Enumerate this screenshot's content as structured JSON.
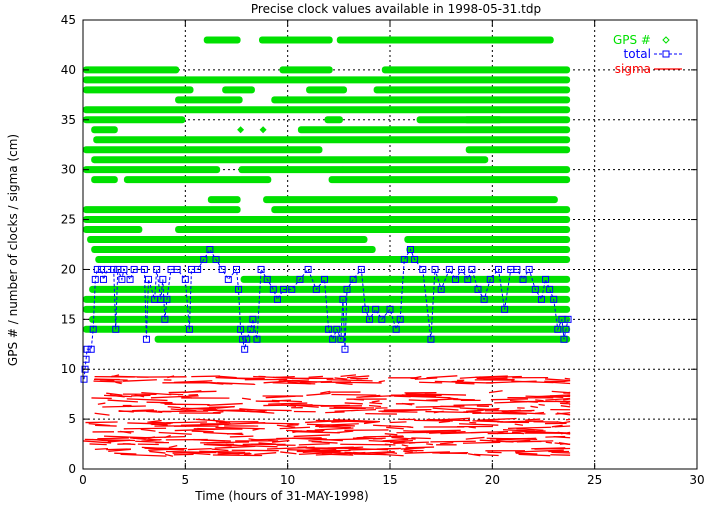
{
  "chart_data": {
    "type": "scatter",
    "title": "Precise clock values available in 1998-05-31.tdp",
    "xlabel": "Time (hours of 31-MAY-1998)",
    "ylabel": "GPS # / number of clocks / sigma (cm)",
    "xlim": [
      0,
      30
    ],
    "ylim": [
      0,
      45
    ],
    "x_ticks": [
      "0",
      "5",
      "10",
      "15",
      "20",
      "25",
      "30"
    ],
    "y_ticks": [
      "0",
      "5",
      "10",
      "15",
      "20",
      "25",
      "30",
      "35",
      "40",
      "45"
    ],
    "grid": true,
    "legend_placement": "top-right",
    "series": [
      {
        "name": "GPS #",
        "color": "#00e000",
        "style": "diamond-markers",
        "segments": [
          {
            "gps": 43,
            "spans": [
              [
                5.9,
                7.7
              ],
              [
                8.6,
                12.2
              ],
              [
                12.4,
                23.0
              ]
            ]
          },
          {
            "gps": 40,
            "spans": [
              [
                0,
                4.7
              ],
              [
                9.6,
                12.2
              ],
              [
                14.6,
                23.8
              ]
            ]
          },
          {
            "gps": 39,
            "spans": [
              [
                0,
                23.8
              ]
            ]
          },
          {
            "gps": 38,
            "spans": [
              [
                0,
                5.4
              ],
              [
                6.8,
                8.4
              ],
              [
                10.9,
                12.9
              ],
              [
                14.2,
                23.8
              ]
            ]
          },
          {
            "gps": 37,
            "spans": [
              [
                4.5,
                7.8
              ],
              [
                9.2,
                23.8
              ]
            ]
          },
          {
            "gps": 36,
            "spans": [
              [
                0,
                23.8
              ]
            ]
          },
          {
            "gps": 35,
            "spans": [
              [
                0,
                5.0
              ],
              [
                11.8,
                12.7
              ],
              [
                16.3,
                20.5
              ],
              [
                18.6,
                23.8
              ]
            ]
          },
          {
            "gps": 34,
            "spans": [
              [
                0.4,
                1.7
              ],
              [
                10.5,
                23.8
              ]
            ]
          },
          {
            "gps": 33,
            "spans": [
              [
                0.5,
                23.8
              ]
            ]
          },
          {
            "gps": 32,
            "spans": [
              [
                0,
                11.7
              ],
              [
                18.7,
                23.8
              ]
            ]
          },
          {
            "gps": 31,
            "spans": [
              [
                0.4,
                19.8
              ]
            ]
          },
          {
            "gps": 30,
            "spans": [
              [
                0,
                6.7
              ],
              [
                7.6,
                23.8
              ]
            ]
          },
          {
            "gps": 29,
            "spans": [
              [
                0.4,
                1.7
              ],
              [
                2.0,
                9.2
              ],
              [
                12.0,
                23.8
              ]
            ]
          },
          {
            "gps": 27,
            "spans": [
              [
                6.1,
                7.7
              ],
              [
                8.8,
                23.2
              ]
            ]
          },
          {
            "gps": 26,
            "spans": [
              [
                0,
                7.7
              ],
              [
                9.2,
                23.8
              ]
            ]
          },
          {
            "gps": 25,
            "spans": [
              [
                0,
                23.8
              ]
            ]
          },
          {
            "gps": 24,
            "spans": [
              [
                0,
                2.9
              ],
              [
                4.5,
                23.8
              ]
            ]
          },
          {
            "gps": 23,
            "spans": [
              [
                0.2,
                13.9
              ],
              [
                15.7,
                23.8
              ]
            ]
          },
          {
            "gps": 22,
            "spans": [
              [
                0.4,
                14.3
              ],
              [
                15.8,
                23.8
              ]
            ]
          },
          {
            "gps": 21,
            "spans": [
              [
                0.6,
                23.8
              ]
            ]
          },
          {
            "gps": 19,
            "spans": [
              [
                7.7,
                23.8
              ]
            ]
          },
          {
            "gps": 18,
            "spans": [
              [
                0.3,
                23.8
              ]
            ]
          },
          {
            "gps": 17,
            "spans": [
              [
                0,
                23.8
              ]
            ]
          },
          {
            "gps": 16,
            "spans": [
              [
                0,
                23.8
              ]
            ]
          },
          {
            "gps": 15,
            "spans": [
              [
                0.3,
                23.8
              ]
            ]
          },
          {
            "gps": 14,
            "spans": [
              [
                0,
                23.8
              ]
            ]
          },
          {
            "gps": 13,
            "spans": [
              [
                3.5,
                23.8
              ]
            ]
          }
        ],
        "isolated_points": [
          [
            7.7,
            34
          ],
          [
            8.8,
            34
          ],
          [
            12.7,
            30
          ]
        ]
      },
      {
        "name": "total",
        "color": "#0000ff",
        "style": "square-markers-dashed-line",
        "points": [
          [
            0.05,
            9
          ],
          [
            0.1,
            10
          ],
          [
            0.15,
            11
          ],
          [
            0.2,
            12
          ],
          [
            0.4,
            12
          ],
          [
            0.5,
            14
          ],
          [
            0.6,
            19
          ],
          [
            0.7,
            20
          ],
          [
            0.9,
            20
          ],
          [
            1.0,
            19
          ],
          [
            1.2,
            20
          ],
          [
            1.5,
            20
          ],
          [
            1.6,
            14
          ],
          [
            1.7,
            20
          ],
          [
            1.9,
            19
          ],
          [
            2.0,
            20
          ],
          [
            2.3,
            19
          ],
          [
            2.5,
            20
          ],
          [
            3.0,
            20
          ],
          [
            3.1,
            13
          ],
          [
            3.2,
            19
          ],
          [
            3.5,
            17
          ],
          [
            3.6,
            20
          ],
          [
            3.8,
            17
          ],
          [
            3.9,
            19
          ],
          [
            4.0,
            15
          ],
          [
            4.1,
            17
          ],
          [
            4.3,
            20
          ],
          [
            4.6,
            20
          ],
          [
            5.0,
            19
          ],
          [
            5.2,
            14
          ],
          [
            5.3,
            20
          ],
          [
            5.6,
            20
          ],
          [
            5.9,
            21
          ],
          [
            6.2,
            22
          ],
          [
            6.5,
            21
          ],
          [
            6.8,
            20
          ],
          [
            7.1,
            19
          ],
          [
            7.5,
            20
          ],
          [
            7.6,
            18
          ],
          [
            7.7,
            14
          ],
          [
            7.8,
            13
          ],
          [
            7.9,
            12
          ],
          [
            8.0,
            13
          ],
          [
            8.2,
            14
          ],
          [
            8.3,
            15
          ],
          [
            8.5,
            13
          ],
          [
            8.7,
            20
          ],
          [
            9.0,
            19
          ],
          [
            9.3,
            18
          ],
          [
            9.5,
            17
          ],
          [
            9.8,
            18
          ],
          [
            10.2,
            18
          ],
          [
            10.6,
            19
          ],
          [
            11.0,
            20
          ],
          [
            11.4,
            18
          ],
          [
            11.8,
            19
          ],
          [
            12.0,
            14
          ],
          [
            12.2,
            13
          ],
          [
            12.4,
            14
          ],
          [
            12.6,
            13
          ],
          [
            12.7,
            17
          ],
          [
            12.8,
            12
          ],
          [
            12.9,
            18
          ],
          [
            13.2,
            19
          ],
          [
            13.6,
            20
          ],
          [
            13.8,
            16
          ],
          [
            14.0,
            15
          ],
          [
            14.3,
            16
          ],
          [
            14.6,
            15
          ],
          [
            15.0,
            16
          ],
          [
            15.3,
            14
          ],
          [
            15.5,
            15
          ],
          [
            15.7,
            21
          ],
          [
            16.0,
            22
          ],
          [
            16.2,
            21
          ],
          [
            16.6,
            20
          ],
          [
            17.0,
            13
          ],
          [
            17.2,
            20
          ],
          [
            17.5,
            18
          ],
          [
            17.9,
            20
          ],
          [
            18.2,
            19
          ],
          [
            18.5,
            20
          ],
          [
            18.8,
            19
          ],
          [
            19.0,
            20
          ],
          [
            19.3,
            18
          ],
          [
            19.6,
            17
          ],
          [
            19.9,
            19
          ],
          [
            20.3,
            20
          ],
          [
            20.6,
            16
          ],
          [
            20.9,
            20
          ],
          [
            21.2,
            20
          ],
          [
            21.5,
            19
          ],
          [
            21.8,
            20
          ],
          [
            22.1,
            18
          ],
          [
            22.4,
            17
          ],
          [
            22.6,
            19
          ],
          [
            22.8,
            18
          ],
          [
            23.0,
            17
          ],
          [
            23.2,
            14
          ],
          [
            23.4,
            15
          ],
          [
            23.5,
            13
          ],
          [
            23.6,
            14
          ],
          [
            23.7,
            15
          ]
        ]
      },
      {
        "name": "sigma",
        "color": "#ff0000",
        "style": "dots",
        "bands": [
          {
            "x": [
              0,
              23.8
            ],
            "y": [
              1.4,
              2.2
            ]
          },
          {
            "x": [
              0,
              23.8
            ],
            "y": [
              2.4,
              3.3
            ]
          },
          {
            "x": [
              0,
              23.8
            ],
            "y": [
              3.5,
              5.0
            ]
          },
          {
            "x": [
              0.4,
              23.8
            ],
            "y": [
              5.5,
              7.8
            ]
          },
          {
            "x": [
              0.4,
              23.8
            ],
            "y": [
              8.6,
              9.3
            ]
          }
        ]
      }
    ]
  }
}
